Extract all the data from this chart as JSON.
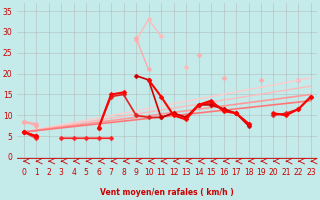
{
  "xlabel": "Vent moyen/en rafales ( km/h )",
  "xlim": [
    -0.5,
    23.5
  ],
  "ylim": [
    -1.5,
    37
  ],
  "xticks": [
    0,
    1,
    2,
    3,
    4,
    5,
    6,
    7,
    8,
    9,
    10,
    11,
    12,
    13,
    14,
    15,
    16,
    17,
    18,
    19,
    20,
    21,
    22,
    23
  ],
  "yticks": [
    0,
    5,
    10,
    15,
    20,
    25,
    30,
    35
  ],
  "bg_color": "#c5eaea",
  "grid_color": "#b0b0b0",
  "series": [
    {
      "x": [
        2,
        3,
        4,
        5,
        6,
        7,
        8,
        9,
        10,
        11,
        12,
        13,
        14
      ],
      "y": [
        null,
        null,
        null,
        null,
        null,
        null,
        null,
        28.0,
        33.0,
        29.0,
        null,
        21.5,
        null
      ],
      "color": "#ffbbbb",
      "lw": 1.0,
      "marker": "D",
      "ms": 2.5
    },
    {
      "x": [
        0,
        1,
        2,
        3,
        4,
        5,
        6,
        7,
        8,
        9,
        10,
        11,
        12,
        13,
        14,
        15,
        16,
        17,
        18,
        19,
        20,
        21,
        22,
        23
      ],
      "y": [
        8.5,
        7.5,
        null,
        null,
        null,
        null,
        null,
        null,
        null,
        28.5,
        21.0,
        null,
        null,
        null,
        24.5,
        null,
        null,
        null,
        null,
        null,
        null,
        null,
        null,
        null
      ],
      "color": "#ffaaaa",
      "lw": 1.0,
      "marker": "D",
      "ms": 2.5
    },
    {
      "x": [
        0,
        1,
        2,
        3,
        4,
        5,
        6,
        7,
        8,
        9,
        10,
        11,
        12,
        13,
        14,
        15,
        16,
        17,
        18,
        19,
        20,
        21,
        22,
        23
      ],
      "y": [
        8.5,
        8.0,
        null,
        null,
        null,
        null,
        null,
        null,
        null,
        null,
        null,
        null,
        null,
        null,
        null,
        null,
        19.0,
        null,
        null,
        18.5,
        null,
        null,
        18.5,
        null
      ],
      "color": "#ffaaaa",
      "lw": 1.0,
      "marker": "D",
      "ms": 2.5
    },
    {
      "x": [
        0,
        23
      ],
      "y": [
        6.0,
        19.0
      ],
      "color": "#ffcccc",
      "lw": 1.0,
      "marker": null,
      "ms": 0
    },
    {
      "x": [
        0,
        23
      ],
      "y": [
        6.0,
        17.0
      ],
      "color": "#ffbbbb",
      "lw": 1.0,
      "marker": null,
      "ms": 0
    },
    {
      "x": [
        0,
        23
      ],
      "y": [
        6.0,
        15.0
      ],
      "color": "#ff9999",
      "lw": 1.2,
      "marker": null,
      "ms": 0
    },
    {
      "x": [
        0,
        23
      ],
      "y": [
        6.0,
        13.5
      ],
      "color": "#ff7777",
      "lw": 1.2,
      "marker": null,
      "ms": 0
    },
    {
      "x": [
        0,
        1,
        2,
        3,
        4,
        5,
        6,
        7,
        8,
        9,
        10,
        11,
        12,
        13,
        14,
        15,
        16,
        17,
        18,
        19,
        20,
        21,
        22,
        23
      ],
      "y": [
        6.0,
        5.0,
        null,
        null,
        null,
        null,
        7.0,
        14.5,
        15.0,
        10.0,
        9.5,
        9.5,
        10.5,
        9.5,
        12.5,
        13.0,
        11.5,
        10.5,
        8.0,
        null,
        10.0,
        10.5,
        11.5,
        14.5
      ],
      "color": "#dd2222",
      "lw": 1.2,
      "marker": "D",
      "ms": 2.5
    },
    {
      "x": [
        0,
        1,
        2,
        3,
        4,
        5,
        6,
        7,
        8,
        9,
        10,
        11,
        12,
        13,
        14,
        15,
        16,
        17,
        18
      ],
      "y": [
        6.0,
        5.0,
        null,
        null,
        null,
        null,
        null,
        null,
        null,
        19.5,
        18.5,
        9.5,
        10.5,
        9.5,
        12.5,
        12.5,
        11.5,
        10.5,
        7.5
      ],
      "color": "#cc0000",
      "lw": 1.2,
      "marker": "D",
      "ms": 2.5
    },
    {
      "x": [
        0,
        1,
        2,
        3,
        4,
        5,
        6,
        7
      ],
      "y": [
        6.0,
        4.5,
        null,
        4.5,
        4.5,
        4.5,
        4.5,
        4.5
      ],
      "color": "#ff2222",
      "lw": 1.2,
      "marker": "D",
      "ms": 2.5
    },
    {
      "x": [
        0,
        1,
        2,
        3,
        4,
        5,
        6,
        7,
        8,
        9,
        10,
        11,
        12,
        13,
        14,
        15,
        16,
        17,
        18,
        19,
        20,
        21,
        22,
        23
      ],
      "y": [
        6.0,
        5.0,
        null,
        null,
        null,
        null,
        7.0,
        15.0,
        15.5,
        null,
        18.5,
        14.5,
        10.0,
        9.0,
        12.5,
        13.5,
        11.0,
        10.5,
        8.0,
        null,
        10.5,
        10.0,
        11.5,
        14.5
      ],
      "color": "#ff0000",
      "lw": 1.5,
      "marker": "D",
      "ms": 2.5
    }
  ],
  "arrow_color": "#cc0000",
  "tick_color": "#cc0000",
  "label_color": "#cc0000"
}
